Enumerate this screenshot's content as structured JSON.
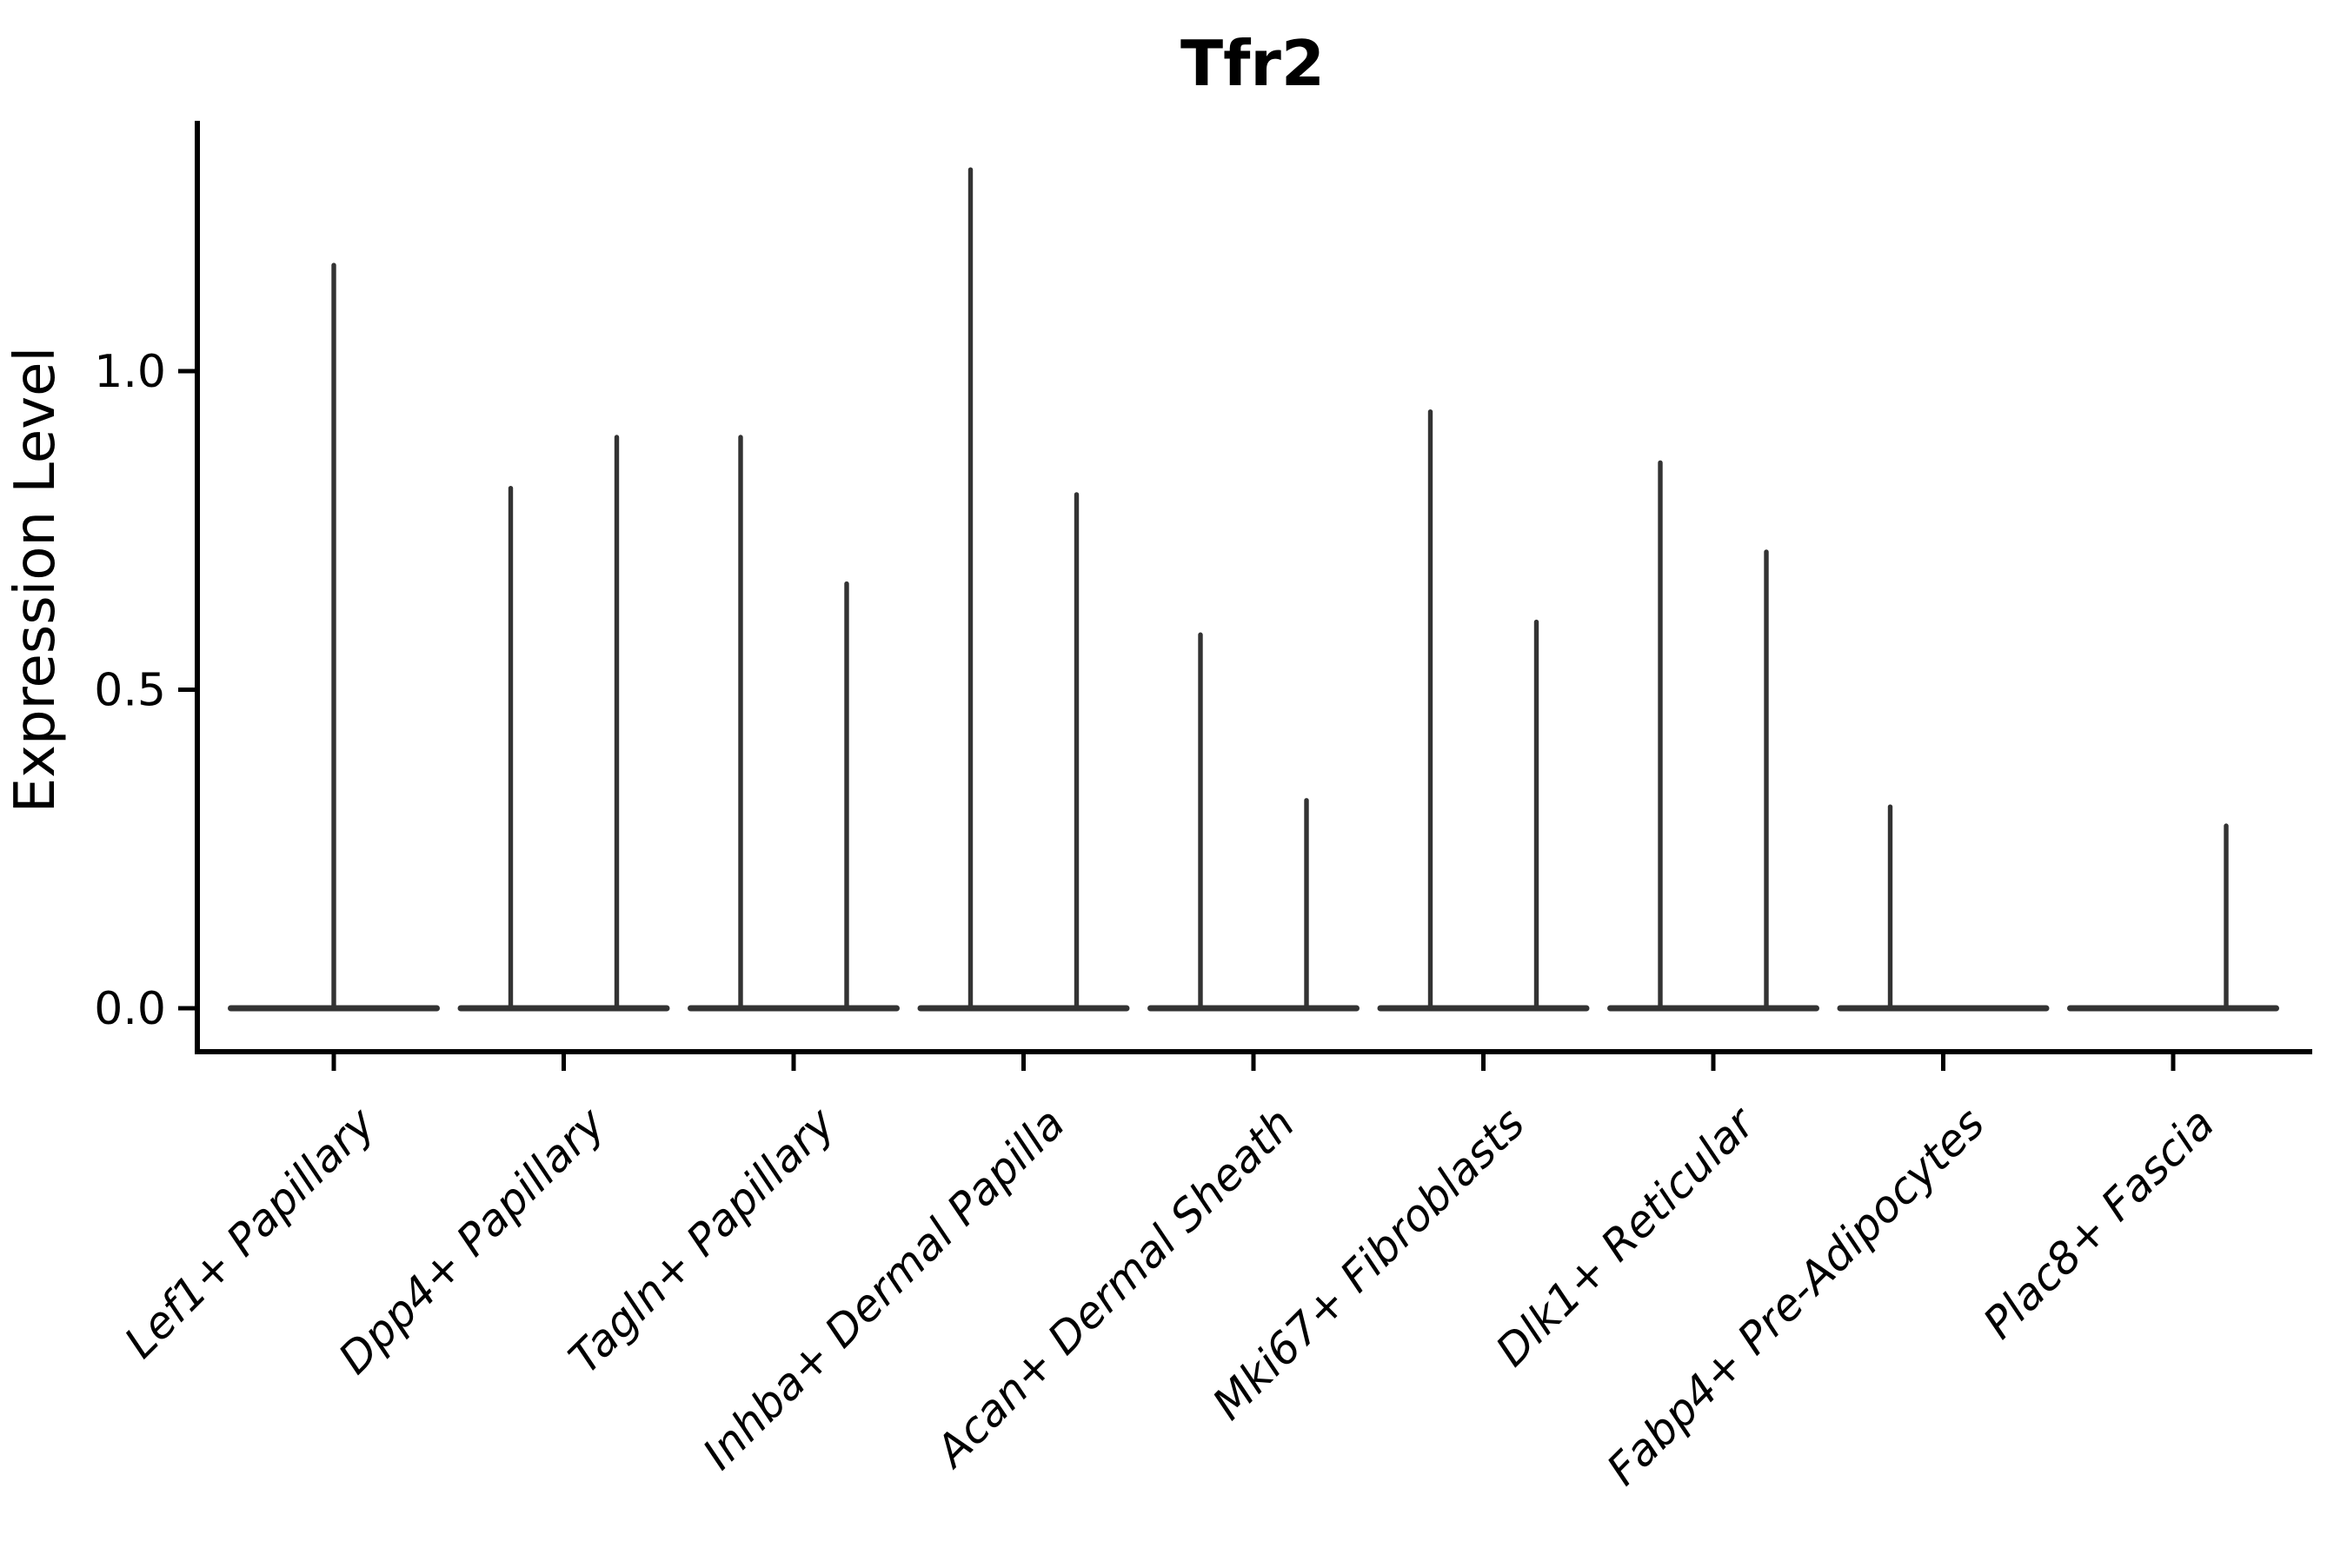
{
  "chart_data": {
    "type": "violin",
    "title": "Tfr2",
    "ylabel": "Expression Level",
    "xlabel": "",
    "ytick_labels": [
      "0.0",
      "0.5",
      "1.0"
    ],
    "ytick_values": [
      0.0,
      0.5,
      1.0
    ],
    "ylim": [
      -0.07,
      1.39
    ],
    "grid": false,
    "legend_position": "none",
    "baseline_value": 0.0,
    "categories": [
      "Lef1+ Papillary",
      "Dpp4+ Papillary",
      "Tagln+ Papillary",
      "Inhba+ Dermal Papilla",
      "Acan+ Dermal Sheath",
      "Mki67+ Fibroblasts",
      "Dlk1+ Reticular",
      "Fabp4+ Pre-Adipocytes",
      "Plac8+ Fascia"
    ],
    "violins": [
      {
        "category": "Lef1+ Papillary",
        "spikes": [
          {
            "position": "center",
            "max_expression": 1.17
          }
        ]
      },
      {
        "category": "Dpp4+ Papillary",
        "spikes": [
          {
            "position": "left",
            "max_expression": 0.82
          },
          {
            "position": "right",
            "max_expression": 0.9
          }
        ]
      },
      {
        "category": "Tagln+ Papillary",
        "spikes": [
          {
            "position": "left",
            "max_expression": 0.9
          },
          {
            "position": "right",
            "max_expression": 0.67
          }
        ]
      },
      {
        "category": "Inhba+ Dermal Papilla",
        "spikes": [
          {
            "position": "left",
            "max_expression": 1.32
          },
          {
            "position": "right",
            "max_expression": 0.81
          }
        ]
      },
      {
        "category": "Acan+ Dermal Sheath",
        "spikes": [
          {
            "position": "left",
            "max_expression": 0.59
          },
          {
            "position": "right",
            "max_expression": 0.33
          }
        ]
      },
      {
        "category": "Mki67+ Fibroblasts",
        "spikes": [
          {
            "position": "left",
            "max_expression": 0.94
          },
          {
            "position": "right",
            "max_expression": 0.61
          }
        ]
      },
      {
        "category": "Dlk1+ Reticular",
        "spikes": [
          {
            "position": "left",
            "max_expression": 0.86
          },
          {
            "position": "right",
            "max_expression": 0.72
          }
        ]
      },
      {
        "category": "Fabp4+ Pre-Adipocytes",
        "spikes": [
          {
            "position": "left",
            "max_expression": 0.32
          }
        ]
      },
      {
        "category": "Plac8+ Fascia",
        "spikes": [
          {
            "position": "right",
            "max_expression": 0.29
          }
        ]
      }
    ],
    "colors": {
      "violin": "#333333",
      "axis": "#000000",
      "text": "#000000",
      "background": "#ffffff"
    }
  }
}
